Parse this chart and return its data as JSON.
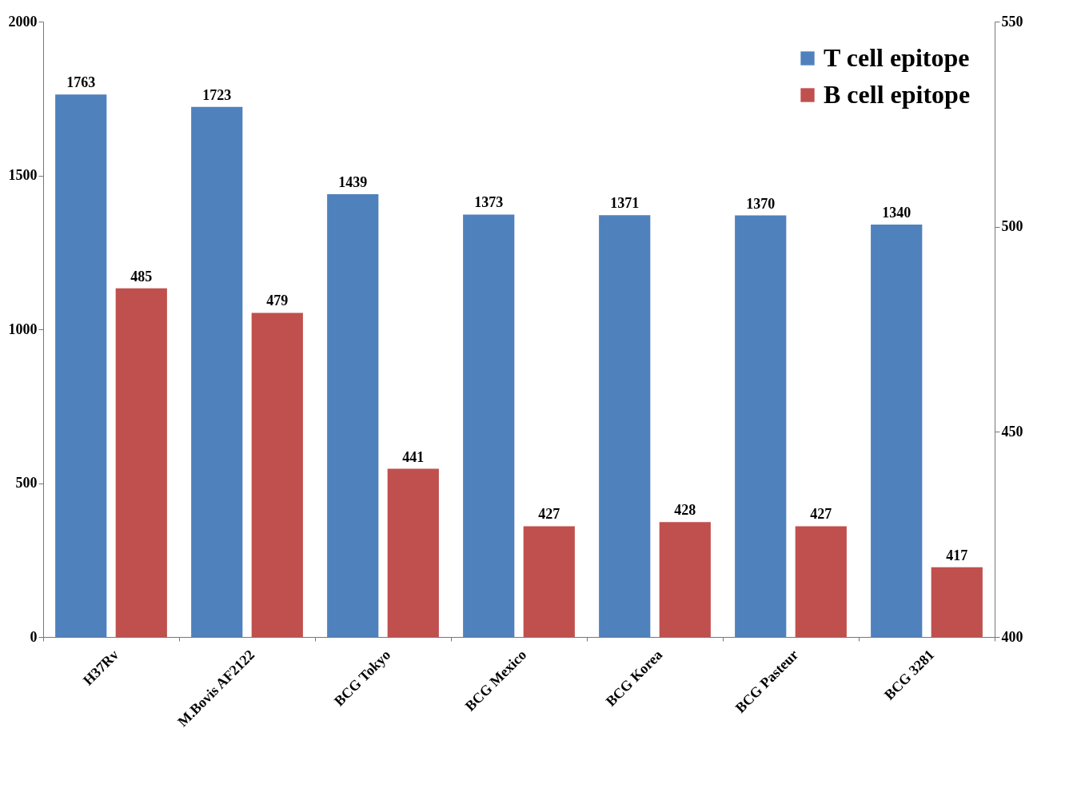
{
  "chart_data": {
    "type": "bar",
    "categories": [
      "H37Rv",
      "M.Bovis AF2122",
      "BCG Tokyo",
      "BCG Mexico",
      "BCG Korea",
      "BCG Pasteur",
      "BCG 3281"
    ],
    "series": [
      {
        "name": "T cell epitope",
        "color": "#4f81bd",
        "values": [
          1763,
          1723,
          1439,
          1373,
          1371,
          1370,
          1340
        ]
      },
      {
        "name": "B cell epitope",
        "color": "#c0504d",
        "values": [
          485,
          479,
          441,
          427,
          428,
          427,
          417
        ],
        "axis": "y2"
      }
    ],
    "ylim": [
      0,
      2000
    ],
    "yticks": [
      0,
      500,
      1000,
      1500,
      2000
    ],
    "y2lim": [
      400,
      550
    ],
    "y2ticks": [
      400,
      450,
      500,
      550
    ],
    "data_labels": true,
    "legend": "top right",
    "grid": false
  }
}
